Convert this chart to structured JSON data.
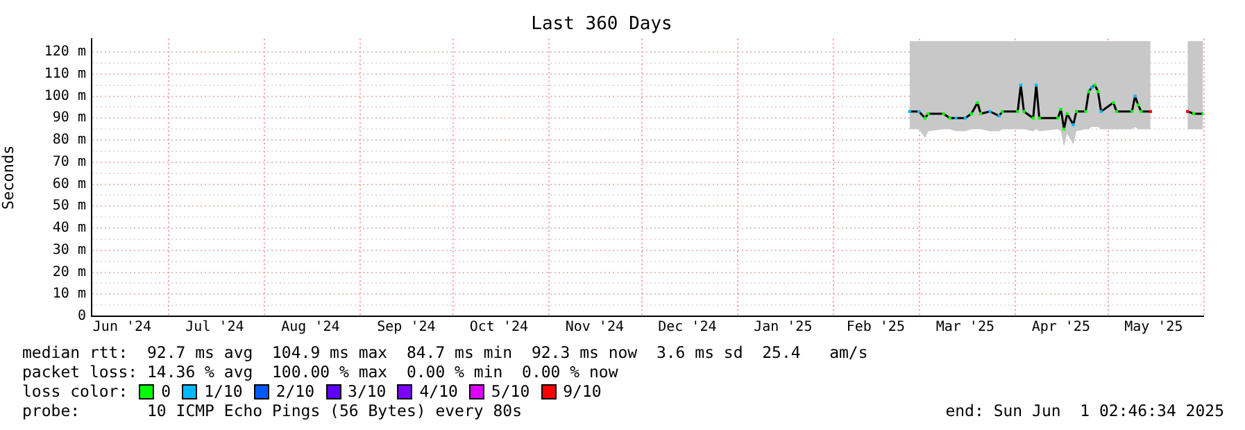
{
  "chart_data": {
    "type": "line",
    "title": "Last 360 Days",
    "ylabel": "Seconds",
    "legend_title": "loss color:",
    "legend": "bottom",
    "grid": "y",
    "x": [
      "2025-02-26",
      "2025-03-01",
      "2025-03-03",
      "2025-03-04",
      "2025-03-09",
      "2025-03-11",
      "2025-03-13",
      "2025-03-16",
      "2025-03-18",
      "2025-03-20",
      "2025-03-21",
      "2025-03-24",
      "2025-03-27",
      "2025-03-28",
      "2025-04-02",
      "2025-04-03",
      "2025-04-04",
      "2025-04-07",
      "2025-04-08",
      "2025-04-09",
      "2025-04-15",
      "2025-04-16",
      "2025-04-17",
      "2025-04-18",
      "2025-04-20",
      "2025-04-21",
      "2025-04-24",
      "2025-04-25",
      "2025-04-26",
      "2025-04-27",
      "2025-04-28",
      "2025-04-29",
      "2025-05-03",
      "2025-05-04",
      "2025-05-09",
      "2025-05-10",
      "2025-05-11",
      "2025-05-12",
      "2025-05-15",
      "2025-05-20",
      "2025-05-27",
      "2025-05-29",
      "2025-06-01"
    ],
    "xlim": [
      "2024-06-06T02:46",
      "2025-06-01T02:46"
    ],
    "xticks": [
      {
        "value": "2024-06-16",
        "label": "Jun '24"
      },
      {
        "value": "2024-07-16",
        "label": "Jul '24"
      },
      {
        "value": "2024-08-16",
        "label": "Aug '24"
      },
      {
        "value": "2024-09-16",
        "label": "Sep '24"
      },
      {
        "value": "2024-10-16",
        "label": "Oct '24"
      },
      {
        "value": "2024-11-16",
        "label": "Nov '24"
      },
      {
        "value": "2024-12-16",
        "label": "Dec '24"
      },
      {
        "value": "2025-01-16",
        "label": "Jan '25"
      },
      {
        "value": "2025-02-15",
        "label": "Feb '25"
      },
      {
        "value": "2025-03-16",
        "label": "Mar '25"
      },
      {
        "value": "2025-04-16",
        "label": "Apr '25"
      },
      {
        "value": "2025-05-16",
        "label": "May '25"
      }
    ],
    "ylim": [
      0,
      126
    ],
    "yticks": [
      0,
      {
        "value": 5,
        "label": null
      },
      {
        "value": 10,
        "label": "10 m"
      },
      {
        "value": 15,
        "label": null
      },
      {
        "value": 20,
        "label": "20 m"
      },
      {
        "value": 25,
        "label": null
      },
      {
        "value": 30,
        "label": "30 m"
      },
      {
        "value": 35,
        "label": null
      },
      {
        "value": 40,
        "label": "40 m"
      },
      {
        "value": 45,
        "label": null
      },
      {
        "value": 50,
        "label": "50 m"
      },
      {
        "value": 55,
        "label": null
      },
      {
        "value": 60,
        "label": "60 m"
      },
      {
        "value": 65,
        "label": null
      },
      {
        "value": 70,
        "label": "70 m"
      },
      {
        "value": 75,
        "label": null
      },
      {
        "value": 80,
        "label": "80 m"
      },
      {
        "value": 85,
        "label": null
      },
      {
        "value": 90,
        "label": "90 m"
      },
      {
        "value": 95,
        "label": null
      },
      {
        "value": 100,
        "label": "100 m"
      },
      {
        "value": 105,
        "label": null
      },
      {
        "value": 110,
        "label": "110 m"
      },
      {
        "value": 115,
        "label": null
      },
      {
        "value": 120,
        "label": "120 m"
      }
    ],
    "ref_lines": [
      {
        "axis": "x",
        "value": "2024-07-01",
        "color": "#ff9c9c",
        "line_style": "dotted"
      },
      {
        "axis": "x",
        "value": "2024-08-01",
        "color": "#ff9c9c",
        "line_style": "dotted"
      },
      {
        "axis": "x",
        "value": "2024-09-01",
        "color": "#ff9c9c",
        "line_style": "dotted"
      },
      {
        "axis": "x",
        "value": "2024-10-01",
        "color": "#ff9c9c",
        "line_style": "dotted"
      },
      {
        "axis": "x",
        "value": "2024-11-01",
        "color": "#ff9c9c",
        "line_style": "dotted"
      },
      {
        "axis": "x",
        "value": "2024-12-01",
        "color": "#ff9c9c",
        "line_style": "dotted"
      },
      {
        "axis": "x",
        "value": "2025-01-01",
        "color": "#ff9c9c",
        "line_style": "dotted"
      },
      {
        "axis": "x",
        "value": "2025-02-01",
        "color": "#ff9c9c",
        "line_style": "dotted"
      },
      {
        "axis": "x",
        "value": "2025-03-01",
        "color": "#ff9c9c",
        "line_style": "dotted"
      },
      {
        "axis": "x",
        "value": "2025-04-01",
        "color": "#ff9c9c",
        "line_style": "dotted"
      },
      {
        "axis": "x",
        "value": "2025-05-01",
        "color": "#ff9c9c",
        "line_style": "dotted"
      },
      {
        "axis": "x",
        "value": "2025-06-01",
        "color": "#ff9c9c",
        "line_style": "dotted"
      }
    ],
    "series": [
      {
        "color": "#000000",
        "values": [
          93,
          93,
          90,
          92,
          92,
          90,
          90,
          90,
          92,
          97,
          92,
          93,
          91,
          93,
          93,
          105,
          93,
          90,
          105,
          90,
          90,
          94,
          85,
          92,
          87,
          93,
          93,
          102,
          104,
          105,
          102,
          93,
          97,
          93,
          93,
          100,
          96,
          93,
          93,
          null,
          null,
          null,
          null
        ],
        "lower": [
          85,
          85,
          81,
          84,
          85,
          85,
          84,
          84,
          85,
          85,
          85,
          84,
          84,
          85,
          85,
          85,
          85,
          84,
          85,
          84,
          85,
          84,
          77,
          83,
          78,
          84,
          85,
          85,
          86,
          86,
          86,
          85,
          85,
          85,
          85,
          86,
          85,
          85,
          85,
          null,
          null,
          null,
          null
        ],
        "upper": [
          125,
          125,
          125,
          125,
          125,
          125,
          125,
          125,
          125,
          125,
          125,
          125,
          125,
          125,
          125,
          125,
          125,
          125,
          125,
          125,
          125,
          125,
          125,
          125,
          125,
          125,
          125,
          125,
          125,
          125,
          125,
          125,
          125,
          125,
          125,
          125,
          125,
          125,
          125,
          null,
          null,
          null,
          null
        ]
      },
      {
        "color": "#000000",
        "x": [
          "2025-05-27",
          "2025-05-29",
          "2025-06-01"
        ],
        "values": [
          93,
          92,
          92
        ],
        "lower": [
          85,
          85,
          85
        ],
        "upper": [
          125,
          125,
          125
        ]
      },
      {
        "type": "scatter",
        "marker": "square",
        "name": "0",
        "color": "#00ff00",
        "values": [
          null,
          null,
          90,
          92,
          92,
          90,
          null,
          null,
          92,
          97,
          92,
          null,
          null,
          93,
          93,
          null,
          93,
          90,
          null,
          90,
          90,
          94,
          85,
          92,
          null,
          93,
          93,
          102,
          null,
          105,
          102,
          null,
          97,
          93,
          93,
          null,
          96,
          93,
          null,
          null,
          null,
          92,
          92
        ]
      },
      {
        "type": "scatter",
        "marker": "square",
        "name": "1/10",
        "color": "#00b8ff",
        "values": [
          93,
          93,
          null,
          null,
          null,
          null,
          90,
          90,
          null,
          null,
          null,
          93,
          91,
          null,
          null,
          105,
          null,
          null,
          105,
          null,
          null,
          null,
          null,
          null,
          87,
          null,
          null,
          null,
          104,
          null,
          null,
          93,
          null,
          null,
          null,
          100,
          null,
          null,
          null,
          null,
          null,
          null,
          null
        ]
      },
      {
        "type": "scatter",
        "marker": "square",
        "name": "2/10",
        "color": "#0059ff",
        "values": [
          null,
          null,
          null,
          null,
          null,
          null,
          null,
          null,
          null,
          null,
          null,
          null,
          null,
          null,
          null,
          null,
          null,
          null,
          null,
          null,
          null,
          null,
          null,
          null,
          null,
          null,
          null,
          null,
          null,
          null,
          null,
          null,
          null,
          null,
          null,
          null,
          null,
          null,
          null,
          null,
          null,
          null,
          null
        ]
      },
      {
        "type": "scatter",
        "marker": "square",
        "name": "3/10",
        "color": "#5e00ff",
        "values": [
          null,
          null,
          null,
          null,
          null,
          null,
          null,
          null,
          null,
          null,
          null,
          null,
          null,
          null,
          null,
          null,
          null,
          null,
          null,
          null,
          null,
          null,
          null,
          null,
          null,
          null,
          null,
          null,
          null,
          null,
          null,
          null,
          null,
          null,
          null,
          null,
          null,
          null,
          null,
          null,
          null,
          null,
          null
        ]
      },
      {
        "type": "scatter",
        "marker": "square",
        "name": "4/10",
        "color": "#7e00ff",
        "values": [
          null,
          null,
          null,
          null,
          null,
          null,
          null,
          null,
          null,
          null,
          null,
          null,
          null,
          null,
          null,
          null,
          null,
          null,
          null,
          null,
          null,
          null,
          null,
          null,
          null,
          null,
          null,
          null,
          null,
          null,
          null,
          null,
          null,
          null,
          null,
          null,
          null,
          null,
          null,
          null,
          null,
          null,
          null
        ]
      },
      {
        "type": "scatter",
        "marker": "square",
        "name": "5/10",
        "color": "#dd00ff",
        "values": [
          null,
          null,
          null,
          null,
          null,
          null,
          null,
          null,
          null,
          null,
          null,
          null,
          null,
          null,
          null,
          null,
          null,
          null,
          null,
          null,
          null,
          null,
          null,
          null,
          null,
          null,
          null,
          null,
          null,
          null,
          null,
          null,
          null,
          null,
          null,
          null,
          null,
          null,
          null,
          null,
          null,
          null,
          null
        ]
      },
      {
        "type": "scatter",
        "marker": "square",
        "name": "9/10",
        "color": "#ff0000",
        "values": [
          null,
          null,
          null,
          null,
          null,
          null,
          null,
          null,
          null,
          null,
          null,
          null,
          null,
          null,
          null,
          null,
          null,
          null,
          null,
          null,
          null,
          null,
          null,
          null,
          null,
          null,
          null,
          null,
          null,
          null,
          null,
          null,
          null,
          null,
          null,
          null,
          null,
          null,
          93,
          null,
          93,
          null,
          null
        ]
      }
    ],
    "annotations": [
      "median rtt:  92.7 ms avg  104.9 ms max  84.7 ms min  92.3 ms now  3.6 ms sd  25.4   am/s",
      "packet loss: 14.36 % avg  100.00 % max  0.00 % min  0.00 % now",
      "probe:       10 ICMP Echo Pings (56 Bytes) every 80s",
      "end: Sun Jun  1 02:46:34 2025"
    ]
  }
}
